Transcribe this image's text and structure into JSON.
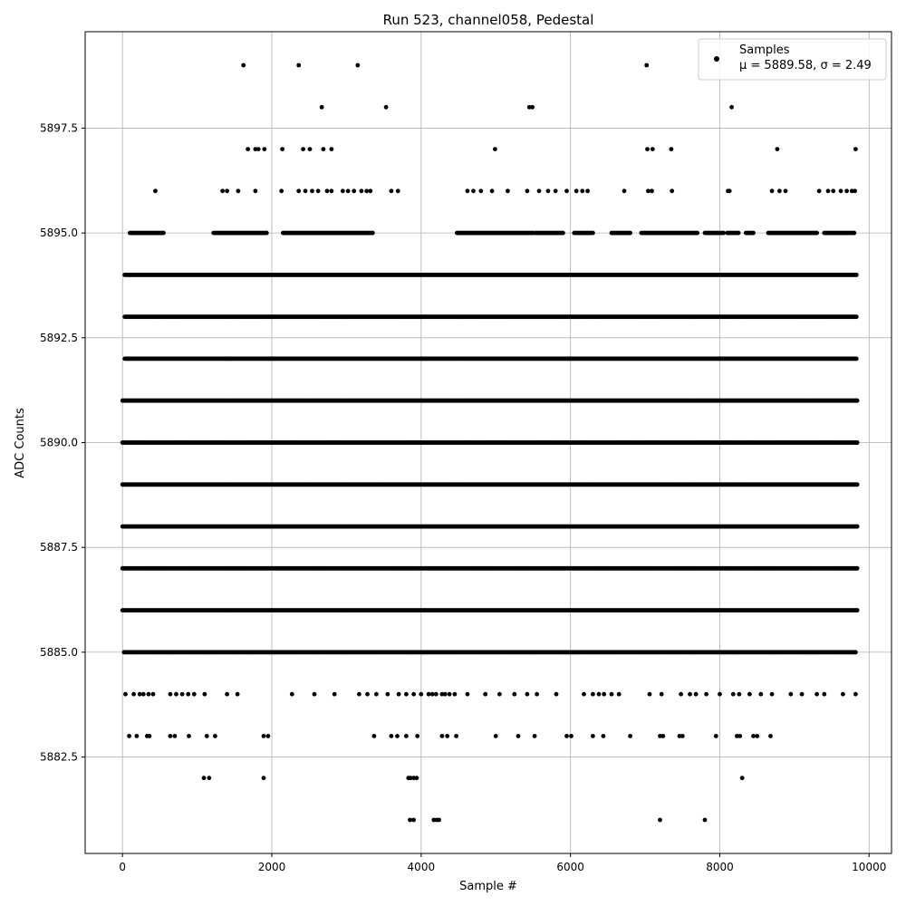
{
  "chart_data": {
    "type": "scatter",
    "title": "Run 523, channel058, Pedestal",
    "xlabel": "Sample #",
    "ylabel": "ADC Counts",
    "xlim": [
      -500,
      10300
    ],
    "ylim": [
      5880.2,
      5899.8
    ],
    "xticks": [
      0,
      2000,
      4000,
      6000,
      8000,
      10000
    ],
    "xtick_labels": [
      "0",
      "2000",
      "4000",
      "6000",
      "8000",
      "10000"
    ],
    "yticks": [
      5882.5,
      5885.0,
      5887.5,
      5890.0,
      5892.5,
      5895.0,
      5897.5
    ],
    "ytick_labels": [
      "5882.5",
      "5885.0",
      "5887.5",
      "5890.0",
      "5892.5",
      "5895.0",
      "5897.5"
    ],
    "grid": true,
    "legend": {
      "placement": "upper-right",
      "entries": [
        {
          "label": "Samples",
          "stats": "μ = 5889.58, σ = 2.49"
        }
      ]
    },
    "marker_color": "#000000",
    "sample_count": 9850,
    "series": [
      {
        "name": "Samples",
        "levels": [
          {
            "y": 5899,
            "x": [
              1620,
              2360,
              3150,
              7020
            ]
          },
          {
            "y": 5898,
            "x": [
              2670,
              3530,
              5450,
              5490,
              8160
            ]
          },
          {
            "y": 5897,
            "x": [
              1680,
              1780,
              1820,
              1900,
              2140,
              2420,
              2510,
              2690,
              2800,
              4990,
              7030,
              7100,
              7350,
              8770,
              9820
            ]
          },
          {
            "y": 5896,
            "x": [
              440,
              1340,
              1400,
              1550,
              1780,
              2130,
              2360,
              2450,
              2540,
              2620,
              2740,
              2800,
              2950,
              3020,
              3100,
              3200,
              3270,
              3320,
              3600,
              3690,
              4620,
              4700,
              4800,
              4950,
              5160,
              5420,
              5580,
              5700,
              5800,
              5950,
              6080,
              6160,
              6230,
              6720,
              7040,
              7090,
              7360,
              8110,
              8130,
              8700,
              8800,
              8880,
              9330,
              9450,
              9520,
              9620,
              9700,
              9770,
              9810
            ]
          },
          {
            "y": 5884,
            "x": [
              40,
              150,
              230,
              280,
              350,
              410,
              640,
              720,
              800,
              880,
              960,
              1100,
              1400,
              1540,
              2270,
              2570,
              2840,
              3170,
              3280,
              3400,
              3550,
              3700,
              3800,
              3900,
              4000,
              4100,
              4150,
              4200,
              4280,
              4320,
              4380,
              4450,
              4620,
              4860,
              5050,
              5250,
              5420,
              5550,
              5810,
              6180,
              6300,
              6380,
              6450,
              6550,
              6650,
              7060,
              7220,
              7480,
              7600,
              7680,
              7820,
              8000,
              8180,
              8260,
              8400,
              8550,
              8700,
              8950,
              9100,
              9300,
              9400,
              9650,
              9820
            ]
          },
          {
            "y": 5883,
            "x": [
              90,
              190,
              330,
              360,
              640,
              700,
              890,
              1130,
              1240,
              1890,
              1950,
              3370,
              3600,
              3680,
              3800,
              3950,
              4280,
              4350,
              4470,
              5000,
              5300,
              5520,
              5950,
              6010,
              6300,
              6440,
              6800,
              7200,
              7240,
              7460,
              7500,
              7950,
              8230,
              8270,
              8450,
              8500,
              8680
            ]
          },
          {
            "y": 5882,
            "x": [
              1090,
              1160,
              1890,
              3830,
              3860,
              3900,
              3940,
              8300
            ]
          },
          {
            "y": 5881,
            "x": [
              3850,
              3900,
              4170,
              4210,
              4240,
              7200,
              7800
            ]
          }
        ],
        "dense_bands": [
          {
            "y": 5895,
            "ranges": [
              [
                100,
                550
              ],
              [
                1220,
                1930
              ],
              [
                2150,
                3350
              ],
              [
                4480,
                5500
              ],
              [
                5530,
                5900
              ],
              [
                6050,
                6300
              ],
              [
                6550,
                6800
              ],
              [
                6950,
                7700
              ],
              [
                7800,
                8050
              ],
              [
                8100,
                8250
              ],
              [
                8350,
                8450
              ],
              [
                8650,
                9300
              ],
              [
                9400,
                9800
              ]
            ]
          },
          {
            "y": 5894,
            "x_start": 30,
            "x_end": 9830
          },
          {
            "y": 5893,
            "x_start": 30,
            "x_end": 9830
          },
          {
            "y": 5892,
            "x_start": 30,
            "x_end": 9830
          },
          {
            "y": 5891,
            "x_start": 0,
            "x_end": 9840
          },
          {
            "y": 5890,
            "x_start": 0,
            "x_end": 9840
          },
          {
            "y": 5889,
            "x_start": 0,
            "x_end": 9840
          },
          {
            "y": 5888,
            "x_start": 0,
            "x_end": 9840
          },
          {
            "y": 5887,
            "x_start": 0,
            "x_end": 9840
          },
          {
            "y": 5886,
            "x_start": 0,
            "x_end": 9840
          },
          {
            "y": 5885,
            "x_start": 20,
            "x_end": 9820
          }
        ]
      }
    ]
  }
}
